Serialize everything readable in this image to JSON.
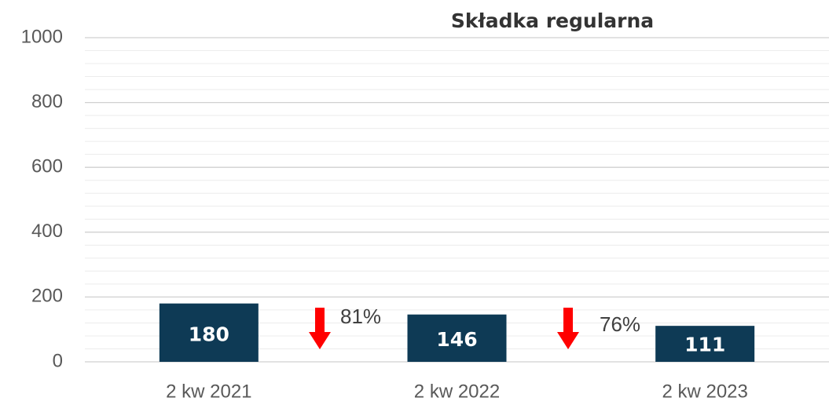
{
  "chart_data": {
    "type": "bar",
    "title": "Składka regularna",
    "categories": [
      "2 kw 2021",
      "2 kw 2022",
      "2 kw 2023"
    ],
    "values": [
      180,
      146,
      111
    ],
    "color": "#0e3a55",
    "ylim": [
      0,
      1000
    ],
    "yticks": [
      0,
      200,
      400,
      600,
      800,
      1000
    ],
    "minor_yticks": [
      40,
      80,
      120,
      160,
      240,
      280,
      320,
      360,
      440,
      480,
      520,
      560,
      640,
      680,
      720,
      760,
      840,
      880,
      920,
      960
    ],
    "grid": true,
    "annotations": [
      "81%",
      "76%"
    ]
  }
}
